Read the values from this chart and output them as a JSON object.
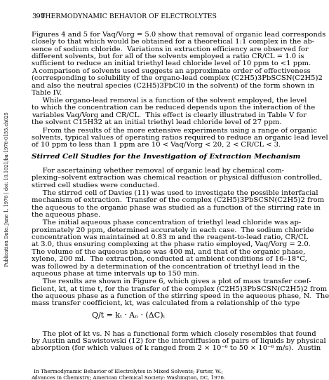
{
  "page_number": "390",
  "header": "THERMODYNAMIC BEHAVIOR OF ELECTROLYTES",
  "sidebar_text": "Publication Date: June 1, 1976 | doi: 10.1021/ba-1976-0155.ch025",
  "footer_line1": "In Thermodynamic Behavior of Electrolytes in Mixed Solvents; Furter, W.;",
  "footer_line2": "Advances in Chemistry; American Chemical Society: Washington, DC, 1976.",
  "background_color": "#ffffff",
  "text_color": "#000000",
  "p1": [
    "Figures 4 and 5 for Vaq/Vorg = 5.0 show that removal of organic lead corresponds",
    "closely to that which would be obtained for a theoretical 1:1 complex in the ab-",
    "sence of sodium chloride.  Variations in extraction efficiency are observed for",
    "different solvents, but for all of the solvents employed a ratio CR/CL = 1.0 is",
    "sufficient to reduce an initial triethyl lead chloride level of 10 ppm to <1 ppm.",
    "A comparison of solvents used suggests an approximate order of effectiveness",
    "(corresponding to solubility of the organo-lead complex (C2H5)3PbSCSN(C2H5)2",
    "and also the neutral species (C2H5)3PbCl0 in the solvent) of the form shown in",
    "Table IV."
  ],
  "p2": [
    "     While organo-lead removal is a function of the solvent employed, the level",
    "to which the concentration can be reduced depends upon the interaction of the",
    "variables Vaq/Vorg and CR/CL.  This effect is clearly illustrated in Table V for",
    "the solvent C15H32 at an initial triethyl lead chloride level of 27 ppm."
  ],
  "p3": [
    "     From the results of the more extensive experiments using a range of organic",
    "solvents, typical values of operating ratios required to reduce an organic lead level",
    "of 10 ppm to less than 1 ppm are 10 < Vaq/Vorg < 20, 2 < CR/CL < 3."
  ],
  "section_header": "Stirred Cell Studies for the Investigation of Extraction Mechanism",
  "p4": [
    "     For ascertaining whether removal of organic lead by chemical com-",
    "plexing–solvent extraction was chemical reaction or physical diffusion controlled,",
    "stirred cell studies were conducted."
  ],
  "p5": [
    "     The stirred cell of Davies (11) was used to investigate the possible interfacial",
    "mechanism of extraction.  Transfer of the complex (C2H5)3PbSCSN(C2H5)2 from",
    "the aqueous to the organic phase was studied as a function of the stirring rate in",
    "the aqueous phase."
  ],
  "p6": [
    "     The initial aqueous phase concentration of triethyl lead chloride was ap-",
    "proximately 20 ppm, determined accurately in each case.  The sodium chloride",
    "concentration was maintained at 0.83 m and the reagent-to-lead ratio, CR/CL",
    "at 3.0, thus ensuring complexing at the phase ratio employed, Vaq/Vorg = 2.0.",
    "The volume of the aqueous phase was 400 ml, and that of the organic phase,",
    "xylene, 200 ml.  The extraction, conducted at ambient conditions of 16–18°C,",
    "was followed by a determination of the concentration of triethyl lead in the",
    "aqueous phase at time intervals up to 150 min."
  ],
  "p7": [
    "     The results are shown in Figure 6, which gives a plot of mass transfer coef-",
    "ficient, kt, at time t, for the transfer of the complex (C2H5)3PbSCSN(C2H5)2 from",
    "the aqueous phase as a function of the stirring speed in the aqueous phase, N.  The",
    "mass transfer coefficient, kt, was calculated from a relationship of the type"
  ],
  "equation": "Q/t = kₜ · Aₙ · (ΔC)ᵢ",
  "p8": [
    "     The plot of kt vs. N has a functional form which closely resembles that found",
    "by Austin and Sawistowski (12) for the interdiffusion of pairs of liquids by physical",
    "absorption (for which values of k ranged from 2 × 10⁻⁶ to 50 × 10⁻⁶ m/s).  Austin"
  ]
}
